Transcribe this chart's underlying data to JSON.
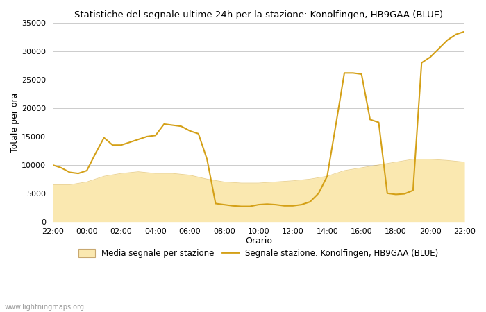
{
  "title": "Statistiche del segnale ultime 24h per la stazione: Konolfingen, HB9GAA (BLUE)",
  "xlabel": "Orario",
  "ylabel": "Totale per ora",
  "watermark": "www.lightningmaps.org",
  "ylim": [
    0,
    35000
  ],
  "yticks": [
    0,
    5000,
    10000,
    15000,
    20000,
    25000,
    30000,
    35000
  ],
  "xtick_labels": [
    "22:00",
    "00:00",
    "02:00",
    "04:00",
    "06:00",
    "08:00",
    "10:00",
    "12:00",
    "14:00",
    "16:00",
    "18:00",
    "20:00",
    "22:00"
  ],
  "line_color": "#D4A017",
  "fill_color": "#FAE8B0",
  "fill_edge_color": "#D4A017",
  "background_color": "#ffffff",
  "grid_color": "#cccccc",
  "legend_line_label": "Segnale stazione: Konolfingen, HB9GAA (BLUE)",
  "legend_fill_label": "Media segnale per stazione",
  "line_x": [
    0,
    1,
    2,
    3,
    4,
    5,
    6,
    7,
    8,
    9,
    10,
    11,
    12,
    13,
    14,
    15,
    16,
    17,
    18,
    19,
    20,
    21,
    22,
    23,
    24,
    25,
    26,
    27,
    28,
    29,
    30,
    31,
    32,
    33,
    34,
    35,
    36,
    37,
    38,
    39,
    40,
    41,
    42,
    43,
    44,
    45,
    46,
    47,
    48
  ],
  "line_values": [
    10000,
    9500,
    8700,
    8500,
    9000,
    12000,
    14800,
    13500,
    13500,
    14000,
    14500,
    15000,
    15200,
    17200,
    17000,
    16800,
    16000,
    15500,
    11000,
    3200,
    3000,
    2800,
    2700,
    2700,
    3000,
    3100,
    3000,
    2800,
    2800,
    3000,
    3500,
    5000,
    8000,
    17000,
    26200,
    26200,
    26000,
    18000,
    17500,
    5000,
    4800,
    4900,
    5500,
    28000,
    29000,
    30500,
    32000,
    33000,
    33500
  ],
  "fill_x": [
    0,
    2,
    4,
    6,
    8,
    10,
    12,
    14,
    16,
    18,
    20,
    22,
    24,
    26,
    28,
    30,
    32,
    34,
    36,
    38,
    40,
    42,
    44,
    46,
    48
  ],
  "fill_values": [
    6500,
    6500,
    7000,
    8000,
    8500,
    8800,
    8500,
    8500,
    8200,
    7500,
    7000,
    6800,
    6800,
    7000,
    7200,
    7500,
    8000,
    9000,
    9500,
    10000,
    10500,
    11000,
    11000,
    10800,
    10500
  ]
}
